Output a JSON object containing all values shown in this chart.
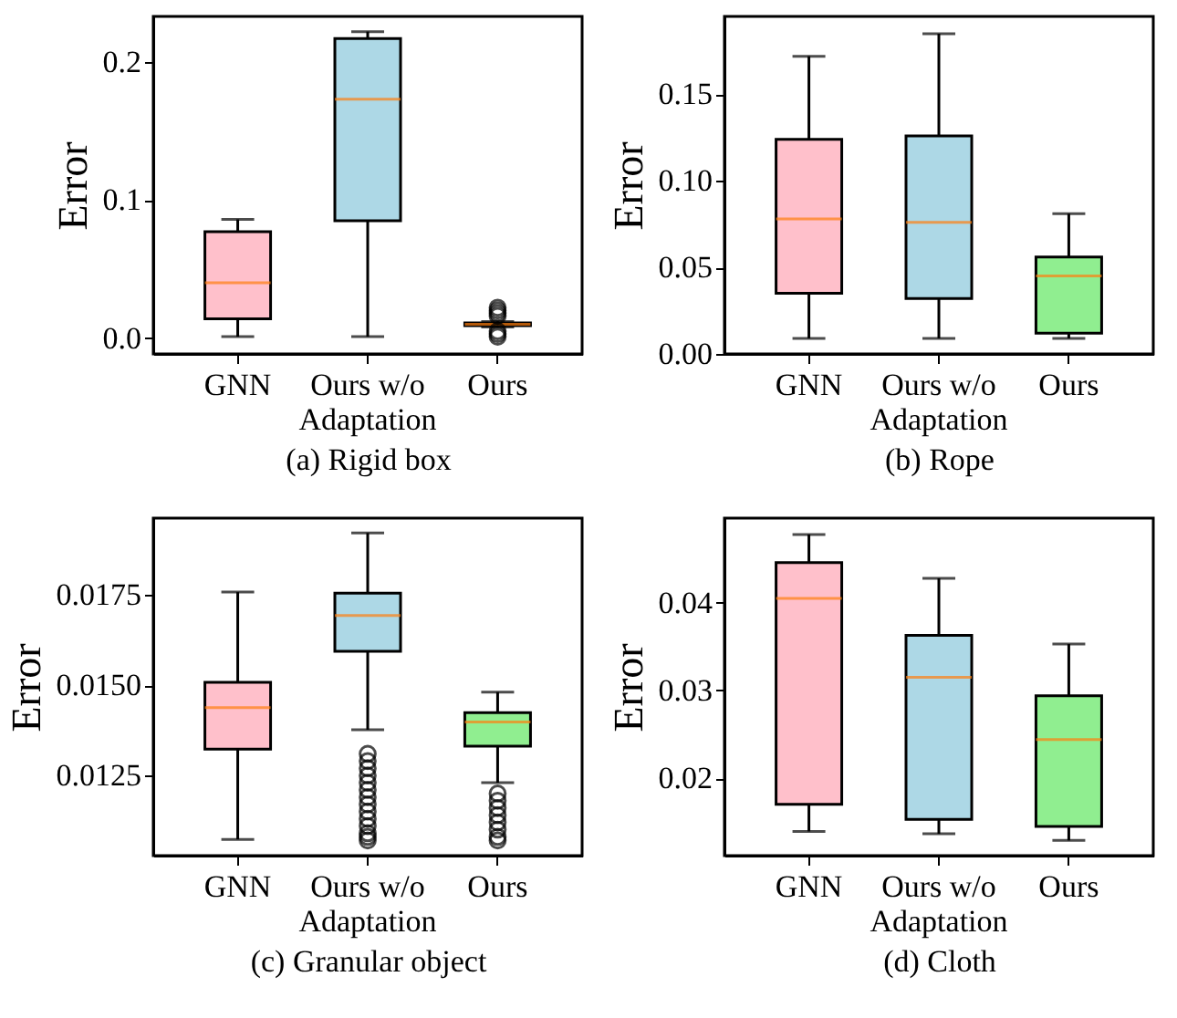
{
  "chart_data": [
    {
      "type": "box",
      "xlabel": "(a) Rigid box",
      "ylabel": "Error",
      "categories": [
        "GNN",
        "Ours w/o\nAdaptation",
        "Ours"
      ],
      "colors": [
        "#ffc0cb",
        "#add8e6",
        "#90ee90"
      ],
      "ylim": [
        -0.0115,
        0.233
      ],
      "yticks": [
        {
          "value": 0,
          "label": "0.0"
        },
        {
          "value": 0.1,
          "label": "0.1"
        },
        {
          "value": 0.2,
          "label": "0.2"
        }
      ],
      "grid": false,
      "boxes": [
        {
          "low": 0.001,
          "q1": 0.014,
          "median": 0.04,
          "q3": 0.077,
          "high": 0.086
        },
        {
          "low": 0.001,
          "q1": 0.085,
          "median": 0.173,
          "q3": 0.217,
          "high": 0.222
        },
        {
          "low": 0.008,
          "q1": 0.009,
          "median": 0.01,
          "q3": 0.011,
          "high": 0.012,
          "outliers": [
            0.001,
            0.003,
            0.005,
            0.016,
            0.018,
            0.02,
            0.022
          ]
        }
      ]
    },
    {
      "type": "box",
      "xlabel": "(b) Rope",
      "ylabel": "Error",
      "categories": [
        "GNN",
        "Ours w/o\nAdaptation",
        "Ours"
      ],
      "colors": [
        "#ffc0cb",
        "#add8e6",
        "#90ee90"
      ],
      "ylim": [
        0,
        0.195
      ],
      "yticks": [
        {
          "value": 0,
          "label": "0.00"
        },
        {
          "value": 0.05,
          "label": "0.05"
        },
        {
          "value": 0.1,
          "label": "0.10"
        },
        {
          "value": 0.15,
          "label": "0.15"
        }
      ],
      "grid": false,
      "boxes": [
        {
          "low": 0.009,
          "q1": 0.035,
          "median": 0.078,
          "q3": 0.124,
          "high": 0.172
        },
        {
          "low": 0.009,
          "q1": 0.032,
          "median": 0.076,
          "q3": 0.126,
          "high": 0.185
        },
        {
          "low": 0.009,
          "q1": 0.012,
          "median": 0.045,
          "q3": 0.056,
          "high": 0.081
        }
      ]
    },
    {
      "type": "box",
      "xlabel": "(c) Granular object",
      "ylabel": "Error",
      "categories": [
        "GNN",
        "Ours w/o\nAdaptation",
        "Ours"
      ],
      "colors": [
        "#ffc0cb",
        "#add8e6",
        "#90ee90"
      ],
      "ylim": [
        0.01028,
        0.01963
      ],
      "yticks": [
        {
          "value": 0.0125,
          "label": "0.0125"
        },
        {
          "value": 0.015,
          "label": "0.0150"
        },
        {
          "value": 0.0175,
          "label": "0.0175"
        }
      ],
      "grid": false,
      "boxes": [
        {
          "low": 0.01073,
          "q1": 0.01323,
          "median": 0.01438,
          "q3": 0.01508,
          "high": 0.01758
        },
        {
          "low": 0.01377,
          "q1": 0.01594,
          "median": 0.01693,
          "q3": 0.01755,
          "high": 0.01922,
          "outliers": [
            0.0131,
            0.0129,
            0.0127,
            0.0125,
            0.0123,
            0.0121,
            0.0119,
            0.0117,
            0.0115,
            0.0113,
            0.0111,
            0.0109,
            0.0108,
            0.0107
          ]
        },
        {
          "low": 0.0123,
          "q1": 0.01331,
          "median": 0.01398,
          "q3": 0.01424,
          "high": 0.01481,
          "outliers": [
            0.012,
            0.0118,
            0.0116,
            0.0114,
            0.0112,
            0.011,
            0.0108,
            0.0107
          ]
        }
      ]
    },
    {
      "type": "box",
      "xlabel": "(d) Cloth",
      "ylabel": "Error",
      "categories": [
        "GNN",
        "Ours w/o\nAdaptation",
        "Ours"
      ],
      "colors": [
        "#ffc0cb",
        "#add8e6",
        "#90ee90"
      ],
      "ylim": [
        0.01117,
        0.04966
      ],
      "yticks": [
        0.02,
        0.03,
        0.04
      ],
      "grid": false,
      "boxes": [
        {
          "low": 0.01393,
          "q1": 0.01703,
          "median": 0.0405,
          "q3": 0.0446,
          "high": 0.0478
        },
        {
          "low": 0.01366,
          "q1": 0.0153,
          "median": 0.0315,
          "q3": 0.0363,
          "high": 0.0428
        },
        {
          "low": 0.0129,
          "q1": 0.0145,
          "median": 0.0244,
          "q3": 0.0294,
          "high": 0.0353
        }
      ]
    }
  ]
}
